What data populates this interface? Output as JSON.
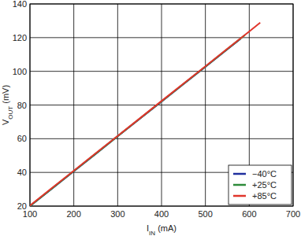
{
  "chart_data": {
    "type": "line",
    "xlabel": [
      {
        "text": "I"
      },
      {
        "text": "IN",
        "sub": true
      },
      {
        "text": " (mA)"
      }
    ],
    "ylabel": [
      {
        "text": "V"
      },
      {
        "text": "OUT",
        "sub": true
      },
      {
        "text": " (mV)"
      }
    ],
    "xlim": [
      100,
      700
    ],
    "ylim": [
      20,
      140
    ],
    "xticks": [
      100,
      200,
      300,
      400,
      500,
      600,
      700
    ],
    "yticks": [
      20,
      40,
      60,
      80,
      100,
      120,
      140
    ],
    "grid": true,
    "legend": "lower right",
    "series": [
      {
        "name": "−40°C",
        "color": "#1f2f9e",
        "x": [
          100,
          150,
          200,
          250,
          300,
          350,
          400,
          450,
          500,
          550,
          580
        ],
        "values": [
          20,
          30.3,
          40.7,
          51,
          61.4,
          71.7,
          82,
          92.4,
          102.7,
          113,
          119.2
        ]
      },
      {
        "name": "+25°C",
        "color": "#2e8b3a",
        "x": [
          100,
          150,
          200,
          250,
          300,
          350,
          400,
          450,
          500,
          550,
          590
        ],
        "values": [
          20,
          30.4,
          40.8,
          51.1,
          61.5,
          71.8,
          82.1,
          92.5,
          102.8,
          113.2,
          121.5
        ]
      },
      {
        "name": "+85°C",
        "color": "#e0352b",
        "x": [
          100,
          150,
          200,
          250,
          300,
          350,
          400,
          450,
          500,
          550,
          600,
          625
        ],
        "values": [
          20.3,
          30.7,
          41,
          51.4,
          61.7,
          72,
          82.4,
          92.7,
          103,
          113.4,
          123.7,
          128.9
        ]
      }
    ]
  }
}
